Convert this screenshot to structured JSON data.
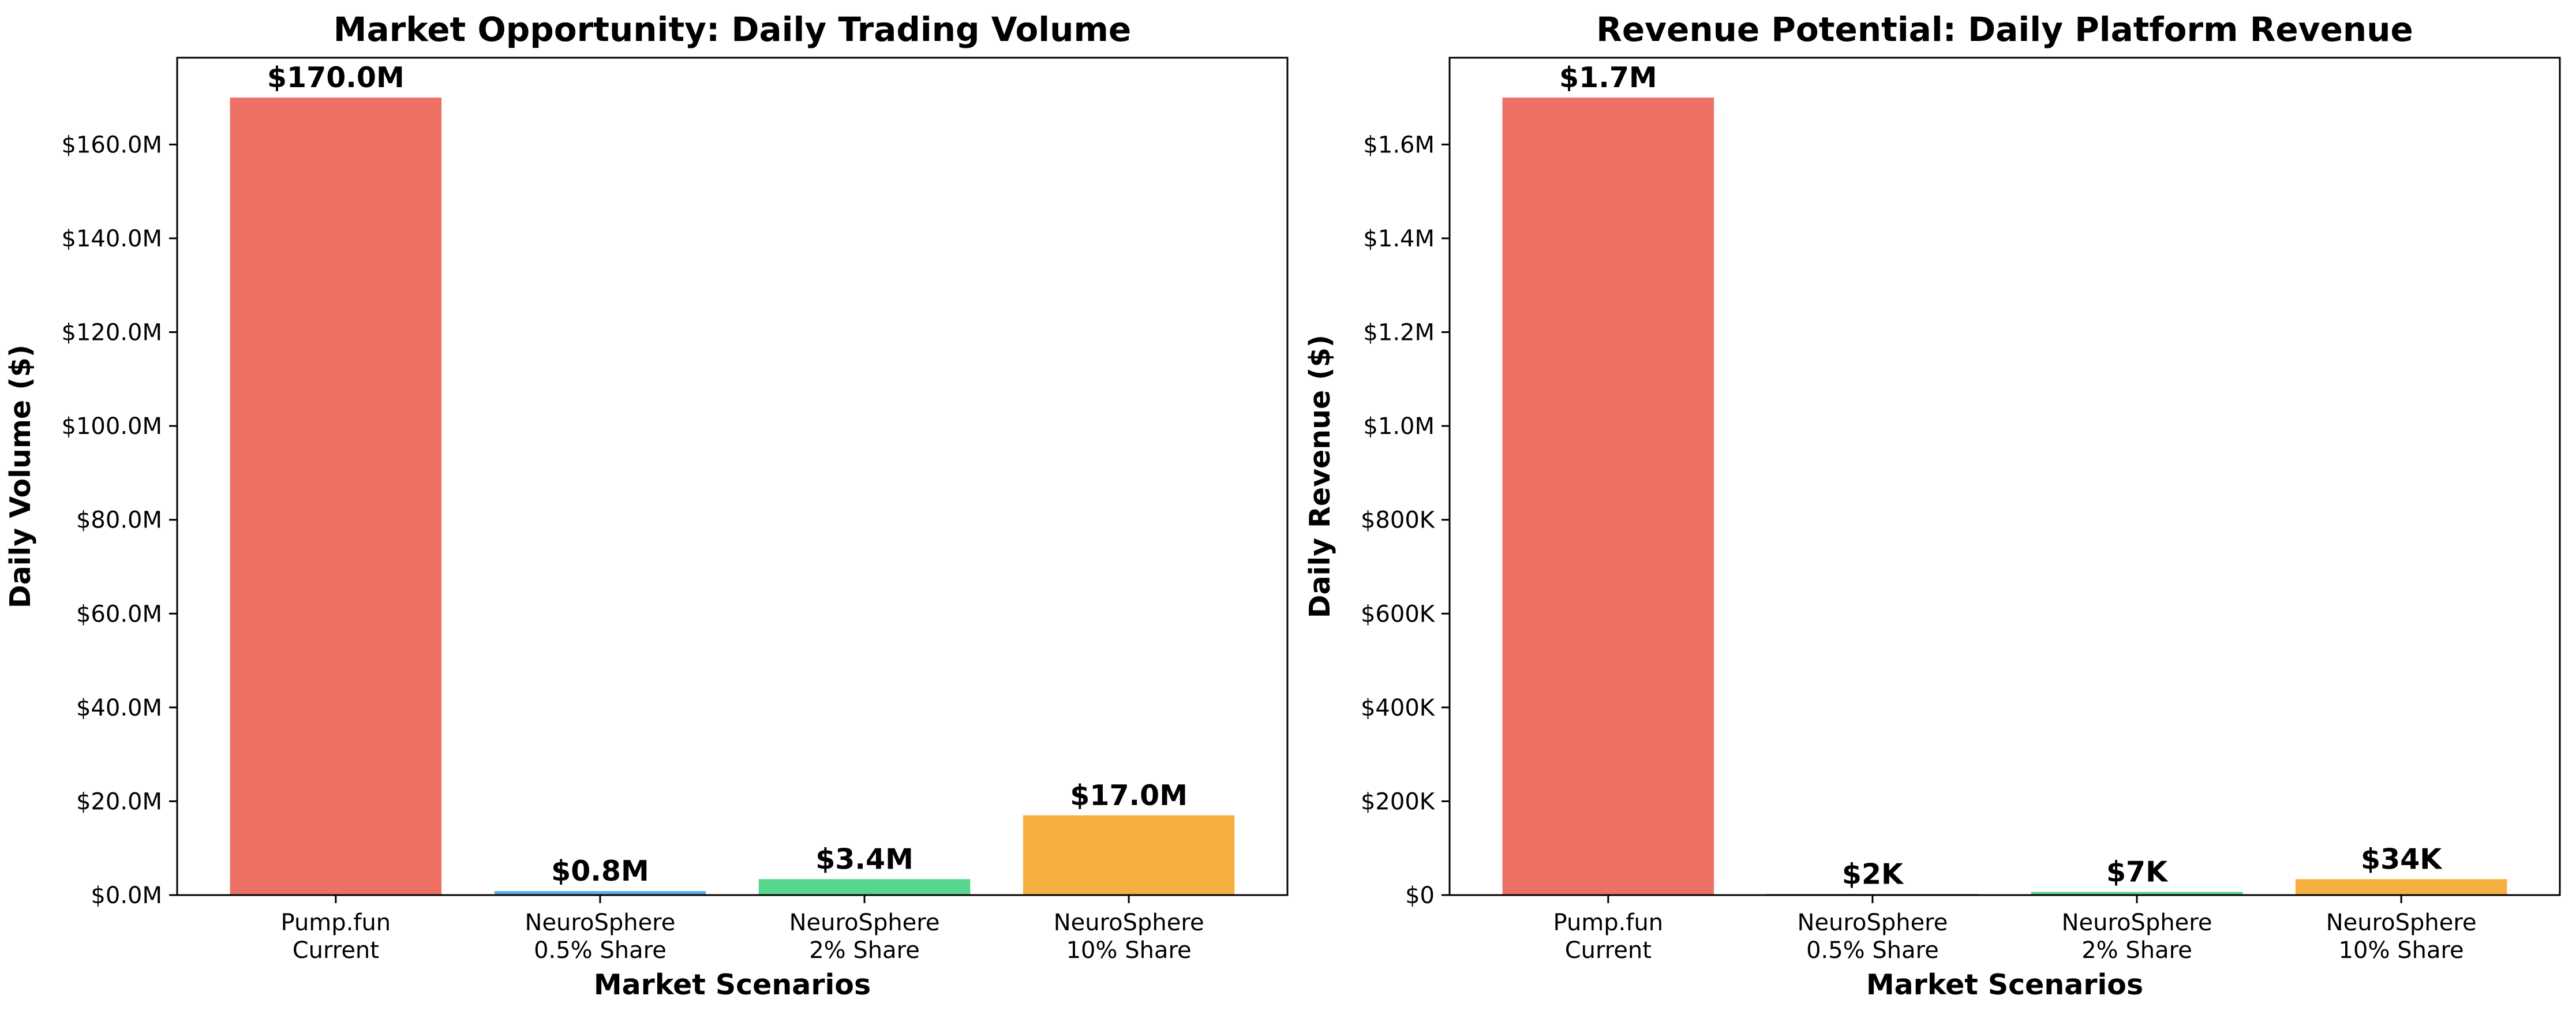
{
  "chart_data": [
    {
      "type": "bar",
      "title": "Market Opportunity: Daily Trading Volume",
      "xlabel": "Market Scenarios",
      "ylabel": "Daily Volume ($)",
      "categories": [
        [
          "Pump.fun",
          "Current"
        ],
        [
          "NeuroSphere",
          "0.5% Share"
        ],
        [
          "NeuroSphere",
          "2% Share"
        ],
        [
          "NeuroSphere",
          "10% Share"
        ]
      ],
      "values": [
        170000000,
        850000,
        3400000,
        17000000
      ],
      "data_labels": [
        "$170.0M",
        "$0.8M",
        "$3.4M",
        "$17.0M"
      ],
      "colors": [
        "#e74c3c",
        "#3498db",
        "#2ecc71",
        "#f39c12"
      ],
      "ylim": [
        0,
        178500000
      ],
      "yticks": [
        0,
        20000000,
        40000000,
        60000000,
        80000000,
        100000000,
        120000000,
        140000000,
        160000000
      ],
      "ytick_labels": [
        "$0.0M",
        "$20.0M",
        "$40.0M",
        "$60.0M",
        "$80.0M",
        "$100.0M",
        "$120.0M",
        "$140.0M",
        "$160.0M"
      ],
      "grid": false
    },
    {
      "type": "bar",
      "title": "Revenue Potential: Daily Platform Revenue",
      "xlabel": "Market Scenarios",
      "ylabel": "Daily Revenue ($)",
      "categories": [
        [
          "Pump.fun",
          "Current"
        ],
        [
          "NeuroSphere",
          "0.5% Share"
        ],
        [
          "NeuroSphere",
          "2% Share"
        ],
        [
          "NeuroSphere",
          "10% Share"
        ]
      ],
      "values": [
        1700000,
        1700,
        6800,
        34000
      ],
      "data_labels": [
        "$1.7M",
        "$2K",
        "$7K",
        "$34K"
      ],
      "colors": [
        "#e74c3c",
        "#3498db",
        "#2ecc71",
        "#f39c12"
      ],
      "ylim": [
        0,
        1785000
      ],
      "yticks": [
        0,
        200000,
        400000,
        600000,
        800000,
        1000000,
        1200000,
        1400000,
        1600000
      ],
      "ytick_labels": [
        "$0",
        "$200K",
        "$400K",
        "$600K",
        "$800K",
        "$1.0M",
        "$1.2M",
        "$1.4M",
        "$1.6M"
      ],
      "grid": false
    }
  ]
}
